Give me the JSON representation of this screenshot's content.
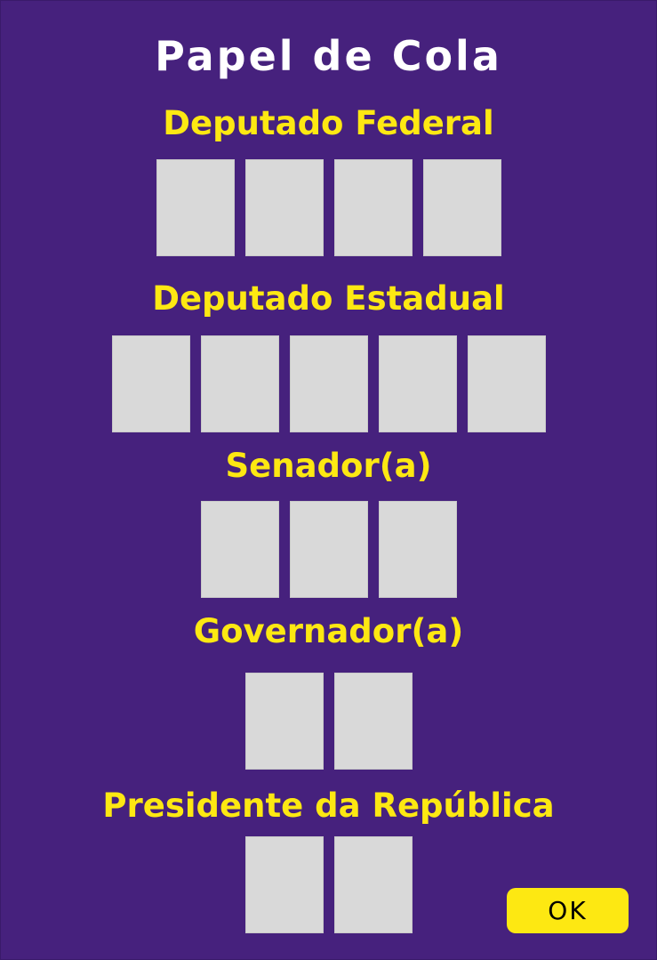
{
  "title": "Papel de Cola",
  "sections": [
    {
      "label": "Deputado Federal",
      "digits": 4
    },
    {
      "label": "Deputado Estadual",
      "digits": 5
    },
    {
      "label": "Senador(a)",
      "digits": 3
    },
    {
      "label": "Governador(a)",
      "digits": 2
    },
    {
      "label": "Presidente da República",
      "digits": 2
    }
  ],
  "ok_button": {
    "label": "OK"
  },
  "colors": {
    "background": "#46217d",
    "title": "#ffffff",
    "label": "#fde812",
    "box": "#d9d9d9",
    "button": "#fde812"
  }
}
